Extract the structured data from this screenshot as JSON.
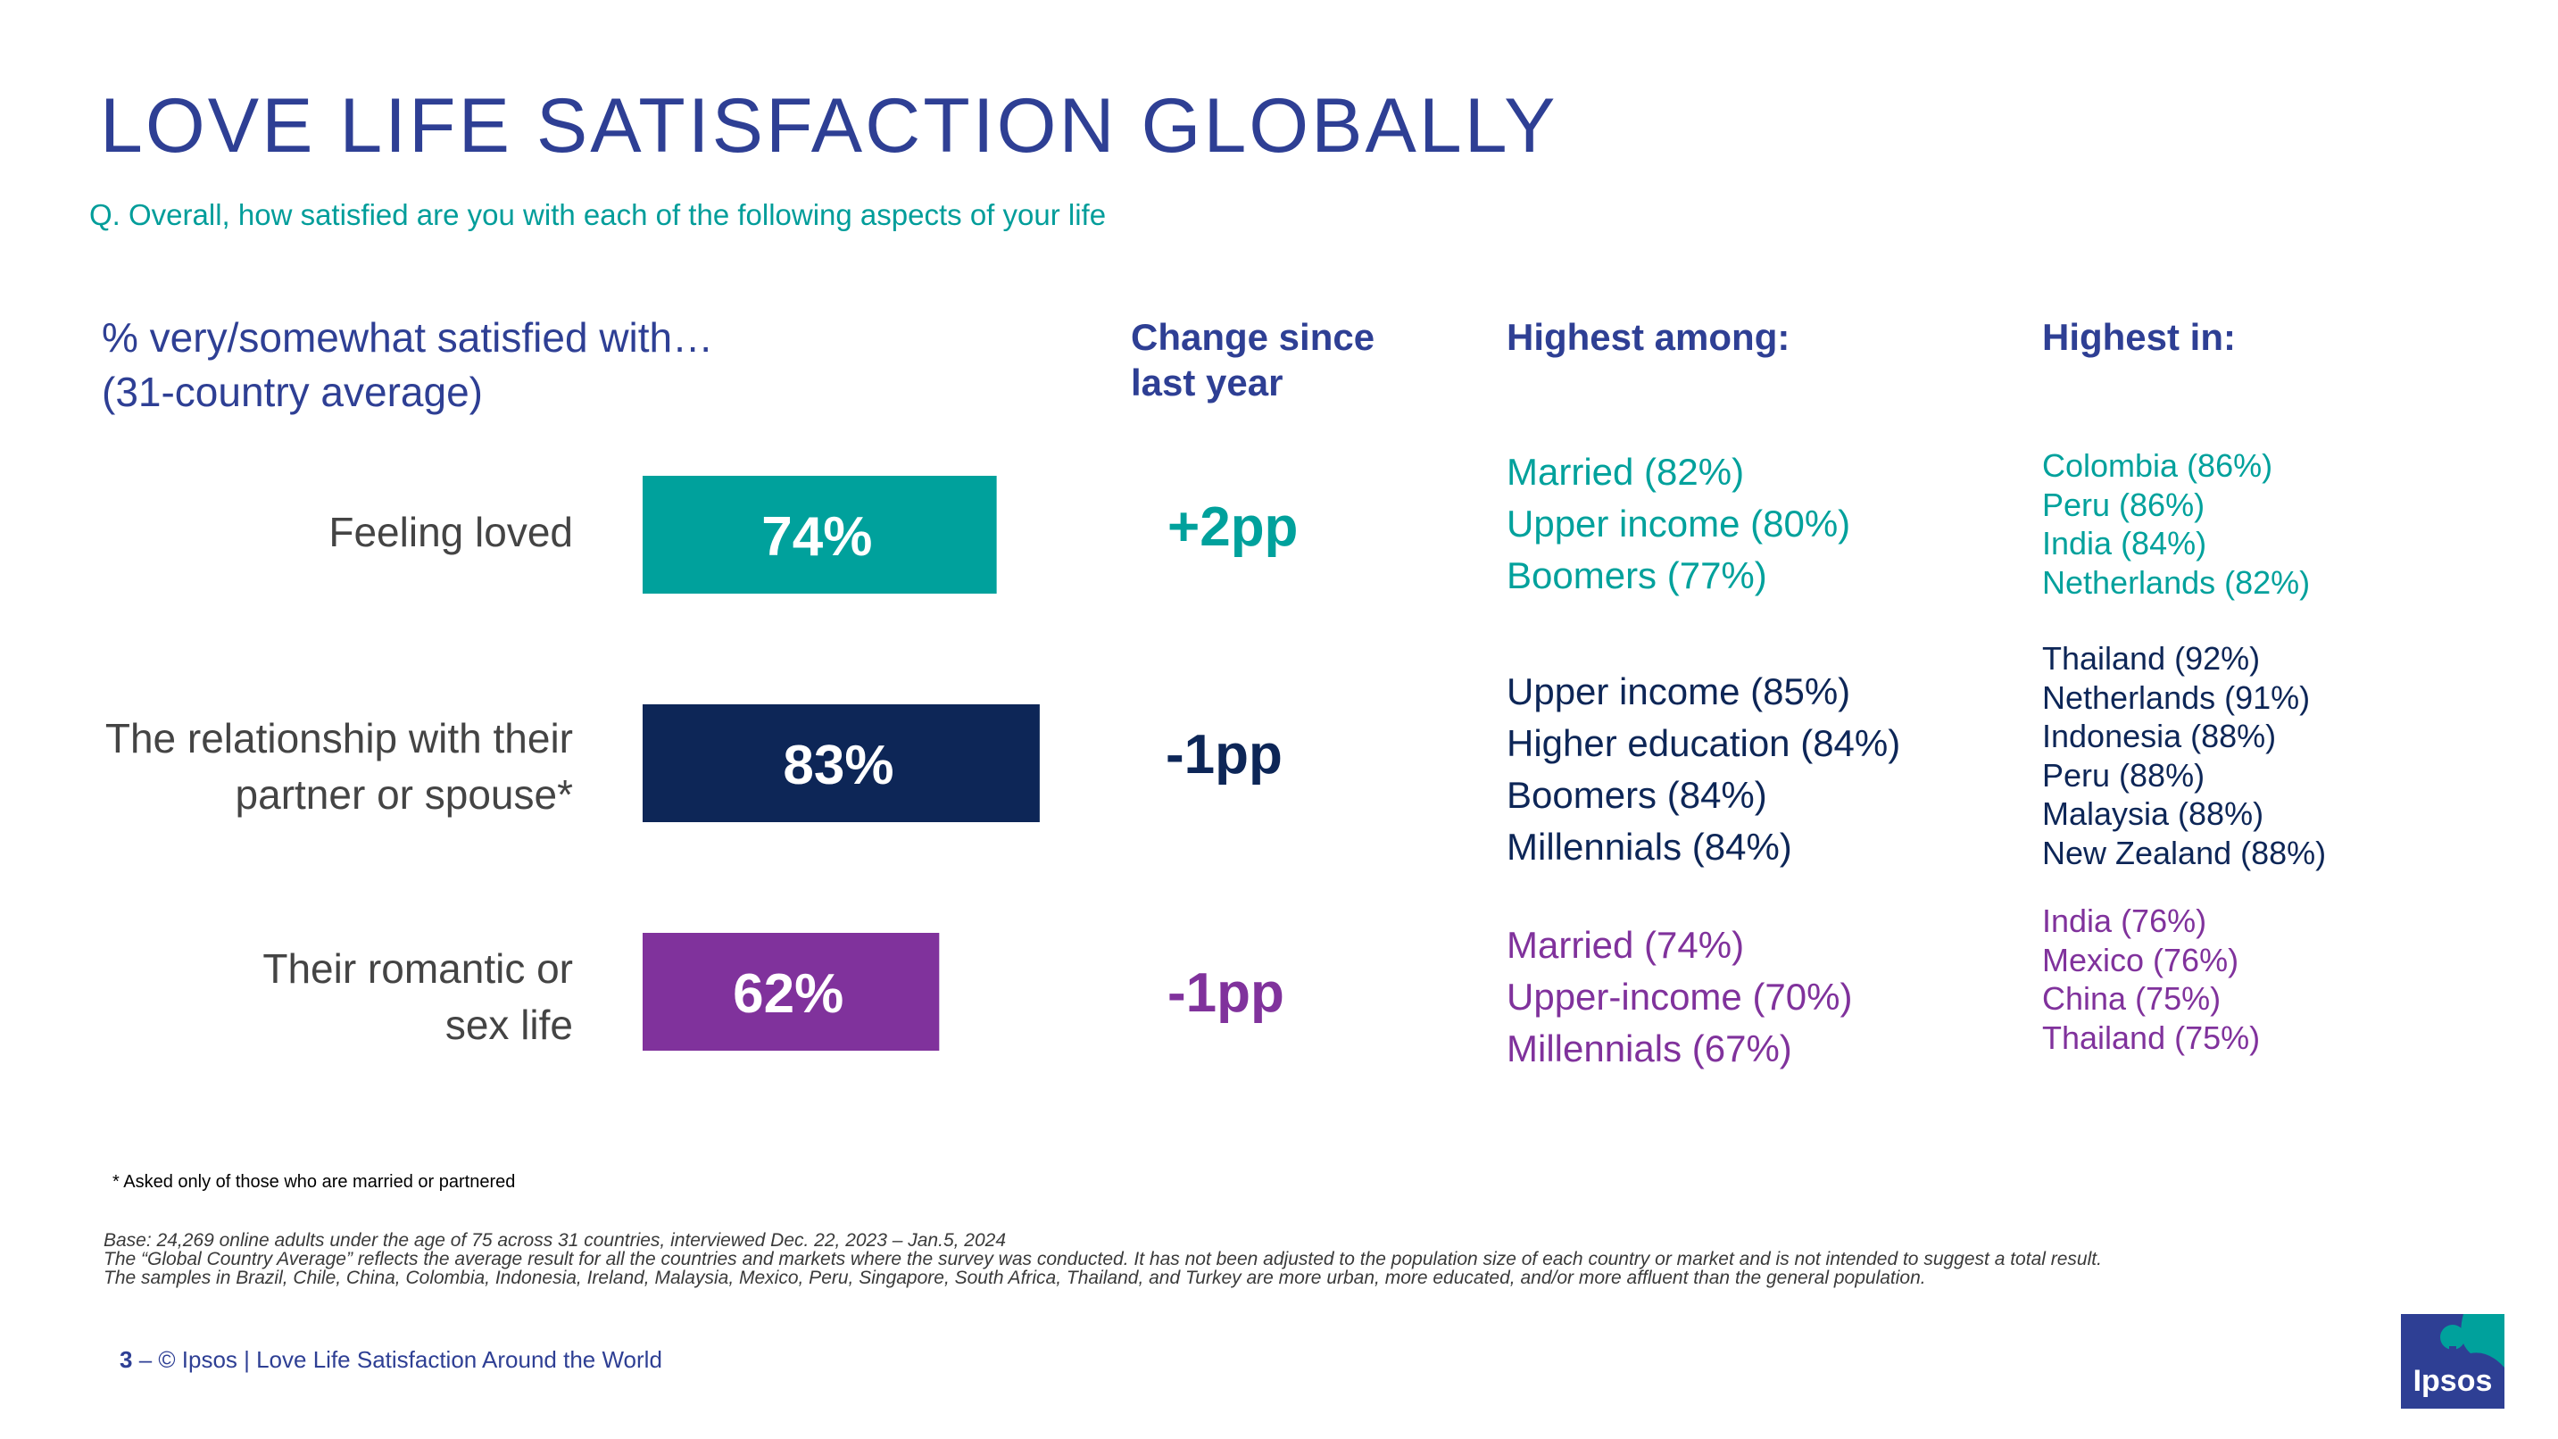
{
  "title": "LOVE LIFE SATISFACTION GLOBALLY",
  "question": "Q. Overall, how satisfied are you with each of the following aspects of your life",
  "subhead": {
    "line1": "% very/somewhat satisfied with…",
    "line2": "(31-country average)"
  },
  "columns": {
    "change": [
      "Change since",
      "last year"
    ],
    "among": "Highest among:",
    "in": "Highest in:"
  },
  "chart_data": {
    "type": "bar",
    "orientation": "horizontal",
    "title": "% very/somewhat satisfied with… (31-country average)",
    "categories": [
      [
        "Feeling loved"
      ],
      [
        "The relationship with their",
        "partner or spouse*"
      ],
      [
        "Their romantic or",
        "sex life"
      ]
    ],
    "values": [
      74,
      83,
      62
    ],
    "labels": [
      "74%",
      "83%",
      "62%"
    ],
    "colors": [
      "#00A19C",
      "#0D2657",
      "#80329C"
    ],
    "xlim": [
      0,
      100
    ]
  },
  "rows": [
    {
      "change": "+2pp",
      "color": "#00A19C",
      "among": [
        "Married (82%)",
        "Upper income (80%)",
        "Boomers (77%)"
      ],
      "in": [
        "Colombia (86%)",
        "Peru (86%)",
        "India (84%)",
        "Netherlands (82%)"
      ]
    },
    {
      "change": "-1pp",
      "color": "#0D2657",
      "among": [
        "Upper income (85%)",
        "Higher education (84%)",
        "Boomers (84%)",
        "Millennials (84%)"
      ],
      "in": [
        "Thailand (92%)",
        "Netherlands (91%)",
        "Indonesia (88%)",
        "Peru (88%)",
        "Malaysia (88%)",
        "New Zealand (88%)"
      ]
    },
    {
      "change": "-1pp",
      "color": "#80329C",
      "among": [
        "Married (74%)",
        "Upper-income (70%)",
        "Millennials (67%)"
      ],
      "in": [
        "India (76%)",
        "Mexico (76%)",
        "China (75%)",
        "Thailand (75%)"
      ]
    }
  ],
  "footnote": "* Asked only of those who are married or partnered",
  "base": [
    "Base: 24,269 online adults under the age of 75 across 31 countries, interviewed Dec. 22, 2023 – Jan.5, 2024",
    "The “Global Country Average” reflects the average result for all the countries and markets where the survey was conducted. It has not been adjusted to the population size of each country or market and is not intended to suggest a total result.",
    "The samples in Brazil, Chile, China, Colombia, Indonesia, Ireland, Malaysia, Mexico, Peru, Singapore, South Africa, Thailand, and Turkey are more urban, more educated, and/or more affluent than the general population."
  ],
  "footer": {
    "page": "3",
    "text": " – © Ipsos | Love Life Satisfaction Around the World"
  },
  "logo_text": "Ipsos",
  "colors": {
    "brand": "#2E3F94",
    "teal": "#009D9A",
    "logo_bg": "#2E3F94",
    "logo_accent": "#00A19C"
  }
}
